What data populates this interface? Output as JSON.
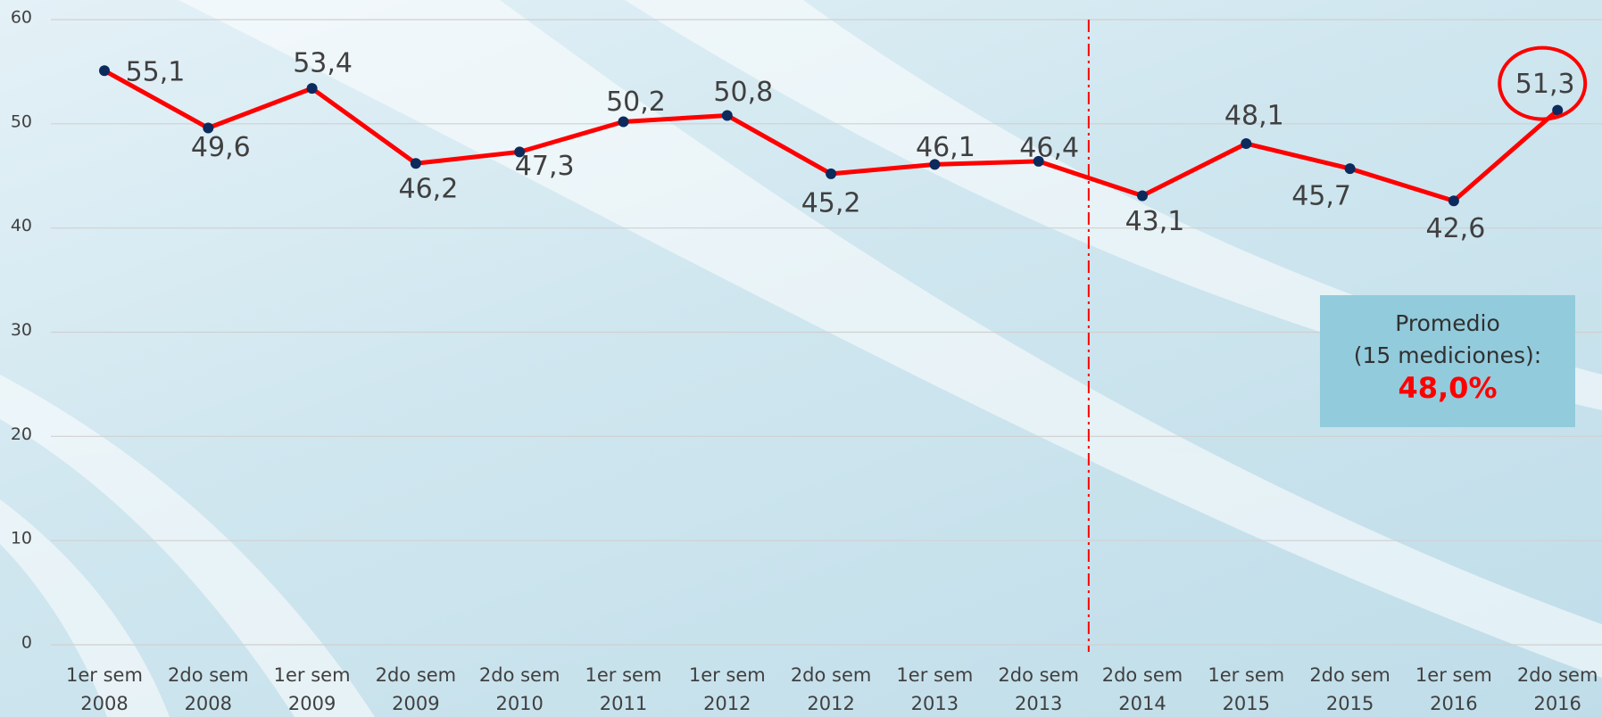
{
  "chart_data": {
    "type": "line",
    "categories": [
      "1er sem 2008",
      "2do sem 2008",
      "1er sem 2009",
      "2do sem 2009",
      "2do sem 2010",
      "1er sem 2011",
      "1er sem 2012",
      "2do sem 2012",
      "1er sem 2013",
      "2do sem 2013",
      "2do sem 2014",
      "1er sem 2015",
      "2do sem 2015",
      "1er sem 2016",
      "2do sem 2016"
    ],
    "series": [
      {
        "color": "#ff0000",
        "marker_color": "#0d2a5c",
        "values": [
          55.1,
          49.6,
          53.4,
          46.2,
          47.3,
          50.2,
          50.8,
          45.2,
          46.1,
          46.4,
          43.1,
          48.1,
          45.7,
          42.6,
          51.3
        ],
        "value_labels": [
          "55,1",
          "49,6",
          "53,4",
          "46,2",
          "47,3",
          "50,2",
          "50,8",
          "45,2",
          "46,1",
          "46,4",
          "43,1",
          "48,1",
          "45,7",
          "42,6",
          "51,3"
        ]
      }
    ],
    "ylim": [
      0,
      60
    ],
    "yticks": [
      0,
      10,
      20,
      30,
      40,
      50,
      60
    ],
    "grid": true,
    "annotation": {
      "lines": [
        "Promedio",
        "(15 mediciones):"
      ],
      "highlight": "48,0%"
    }
  }
}
